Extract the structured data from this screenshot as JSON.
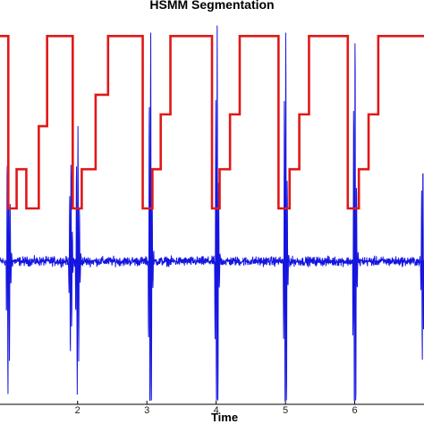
{
  "chart_data": {
    "type": "line",
    "title": "HSMM Segmentation",
    "xlabel": "Time",
    "ylabel": "",
    "xlim": [
      0.88,
      7.0
    ],
    "ylim": [
      -1.0,
      1.0
    ],
    "x_ticks": [
      2,
      3,
      4,
      5,
      6
    ],
    "grid": false,
    "colors": {
      "signal": "#1515e0",
      "states": "#e01818",
      "axes": "#000000"
    },
    "beats": [
      {
        "s1": 1.0,
        "s2": 1.9
      },
      {
        "s1": 2.0,
        "s2": 3.05
      },
      {
        "s1": 3.05,
        "s2": 4.01
      },
      {
        "s1": 4.01,
        "s2": 5.0
      },
      {
        "s1": 5.0,
        "s2": 6.0
      },
      {
        "s1": 6.0,
        "s2": 6.98
      }
    ],
    "series": [
      {
        "type": "step",
        "x": [
          0.88,
          1.0,
          1.0,
          1.12,
          1.12,
          1.26,
          1.26,
          1.44,
          1.44,
          1.56,
          1.56,
          1.93,
          1.93,
          2.06,
          2.06,
          2.26,
          2.26,
          2.44,
          2.44,
          2.55,
          2.55,
          2.94,
          2.94,
          3.08,
          3.08,
          3.2,
          3.2,
          3.34,
          3.34,
          3.44,
          3.44,
          3.94,
          3.94,
          4.05,
          4.05,
          4.2,
          4.2,
          4.34,
          4.34,
          4.45,
          4.45,
          4.9,
          4.9,
          5.06,
          5.06,
          5.2,
          5.2,
          5.34,
          5.34,
          5.44,
          5.44,
          5.9,
          5.9,
          6.06,
          6.06,
          6.2,
          6.2,
          6.34,
          6.34,
          6.47,
          6.47,
          7.0
        ],
        "y": [
          0.88,
          0.88,
          0.0,
          0.0,
          0.2,
          0.2,
          0.0,
          0.0,
          0.42,
          0.42,
          0.88,
          0.88,
          0.0,
          0.0,
          0.2,
          0.2,
          0.58,
          0.58,
          0.88,
          0.88,
          0.88,
          0.88,
          0.0,
          0.0,
          0.2,
          0.2,
          0.48,
          0.48,
          0.88,
          0.88,
          0.88,
          0.88,
          0.0,
          0.0,
          0.2,
          0.2,
          0.48,
          0.48,
          0.88,
          0.88,
          0.88,
          0.88,
          0.0,
          0.0,
          0.2,
          0.2,
          0.48,
          0.48,
          0.88,
          0.88,
          0.88,
          0.88,
          0.0,
          0.0,
          0.2,
          0.2,
          0.48,
          0.48,
          0.88,
          0.88,
          0.88,
          0.88
        ]
      }
    ]
  }
}
